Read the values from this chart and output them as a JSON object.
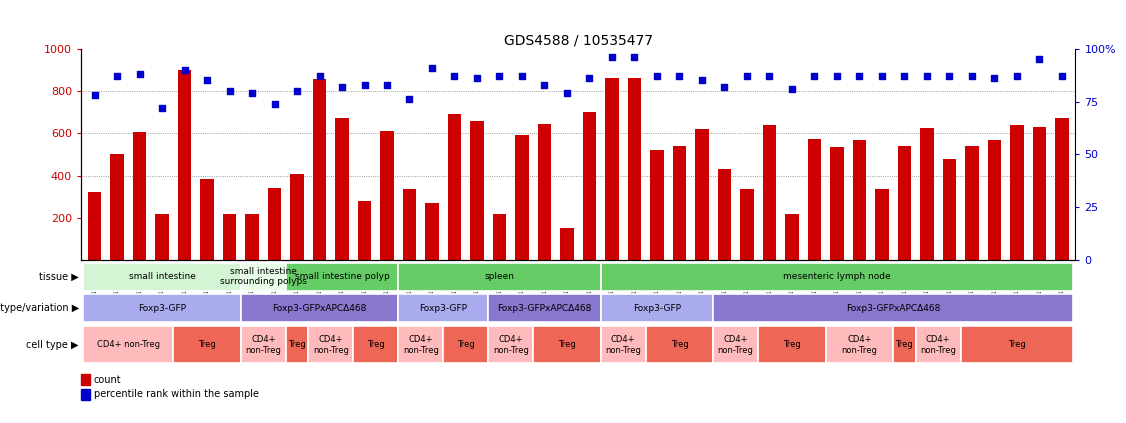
{
  "title": "GDS4588 / 10535477",
  "samples": [
    "GSM1011468",
    "GSM1011469",
    "GSM1011477",
    "GSM1011478",
    "GSM1011482",
    "GSM1011497",
    "GSM1011498",
    "GSM1011466",
    "GSM1011467",
    "GSM1011499",
    "GSM1011489",
    "GSM1011504",
    "GSM1011476",
    "GSM1011490",
    "GSM1011505",
    "GSM1011475",
    "GSM1011487",
    "GSM1011506",
    "GSM1011474",
    "GSM1011488",
    "GSM1011507",
    "GSM1011479",
    "GSM1011494",
    "GSM1011495",
    "GSM1011480",
    "GSM1011496",
    "GSM1011473",
    "GSM1011484",
    "GSM1011502",
    "GSM1011472",
    "GSM1011483",
    "GSM1011503",
    "GSM1011465",
    "GSM1011491",
    "GSM1011492",
    "GSM1011464",
    "GSM1011481",
    "GSM1011493",
    "GSM1011471",
    "GSM1011486",
    "GSM1011500",
    "GSM1011470",
    "GSM1011485",
    "GSM1011501"
  ],
  "bar_values": [
    320,
    500,
    605,
    220,
    900,
    385,
    220,
    220,
    340,
    405,
    855,
    670,
    280,
    610,
    335,
    270,
    690,
    660,
    220,
    590,
    645,
    150,
    700,
    860,
    860,
    520,
    540,
    620,
    430,
    335,
    640,
    220,
    575,
    535,
    570,
    335,
    540,
    625,
    480,
    540,
    570,
    640,
    630,
    670
  ],
  "dot_percentiles": [
    78,
    87,
    88,
    72,
    90,
    85,
    80,
    79,
    74,
    80,
    87,
    82,
    83,
    83,
    76,
    91,
    87,
    86,
    87,
    87,
    83,
    79,
    86,
    96,
    96,
    87,
    87,
    85,
    82,
    87,
    87,
    81,
    87,
    87,
    87,
    87,
    87,
    87,
    87,
    87,
    86,
    87,
    95,
    87
  ],
  "bar_color": "#cc0000",
  "dot_color": "#0000cc",
  "yticks_left": [
    200,
    400,
    600,
    800,
    1000
  ],
  "yticks_right": [
    0,
    25,
    50,
    75,
    100
  ],
  "yticks_right_labels": [
    "0",
    "25",
    "50",
    "75",
    "100%"
  ],
  "grid_values": [
    400,
    600,
    800
  ],
  "tissue_groups": [
    {
      "label": "small intestine",
      "start": 0,
      "end": 7,
      "color": "#d4f5d4"
    },
    {
      "label": "small intestine\nsurrounding polyps",
      "start": 7,
      "end": 9,
      "color": "#e8fce8"
    },
    {
      "label": "small intestine polyp",
      "start": 9,
      "end": 14,
      "color": "#66cc66"
    },
    {
      "label": "spleen",
      "start": 14,
      "end": 23,
      "color": "#66cc66"
    },
    {
      "label": "mesenteric lymph node",
      "start": 23,
      "end": 44,
      "color": "#66cc66"
    }
  ],
  "genotype_groups": [
    {
      "label": "Foxp3-GFP",
      "start": 0,
      "end": 7,
      "color": "#aaaaee"
    },
    {
      "label": "Foxp3-GFPxAPCΔ468",
      "start": 7,
      "end": 14,
      "color": "#8877cc"
    },
    {
      "label": "Foxp3-GFP",
      "start": 14,
      "end": 18,
      "color": "#aaaaee"
    },
    {
      "label": "Foxp3-GFPxAPCΔ468",
      "start": 18,
      "end": 23,
      "color": "#8877cc"
    },
    {
      "label": "Foxp3-GFP",
      "start": 23,
      "end": 28,
      "color": "#aaaaee"
    },
    {
      "label": "Foxp3-GFPxAPCΔ468",
      "start": 28,
      "end": 44,
      "color": "#8877cc"
    }
  ],
  "celltype_groups": [
    {
      "label": "CD4+ non-Treg",
      "start": 0,
      "end": 4,
      "color": "#ffbbbb"
    },
    {
      "label": "Treg",
      "start": 4,
      "end": 7,
      "color": "#ee6655"
    },
    {
      "label": "CD4+\nnon-Treg",
      "start": 7,
      "end": 9,
      "color": "#ffbbbb"
    },
    {
      "label": "Treg",
      "start": 9,
      "end": 10,
      "color": "#ee6655"
    },
    {
      "label": "CD4+\nnon-Treg",
      "start": 10,
      "end": 12,
      "color": "#ffbbbb"
    },
    {
      "label": "Treg",
      "start": 12,
      "end": 14,
      "color": "#ee6655"
    },
    {
      "label": "CD4+\nnon-Treg",
      "start": 14,
      "end": 16,
      "color": "#ffbbbb"
    },
    {
      "label": "Treg",
      "start": 16,
      "end": 18,
      "color": "#ee6655"
    },
    {
      "label": "CD4+\nnon-Treg",
      "start": 18,
      "end": 20,
      "color": "#ffbbbb"
    },
    {
      "label": "Treg",
      "start": 20,
      "end": 23,
      "color": "#ee6655"
    },
    {
      "label": "CD4+\nnon-Treg",
      "start": 23,
      "end": 25,
      "color": "#ffbbbb"
    },
    {
      "label": "Treg",
      "start": 25,
      "end": 28,
      "color": "#ee6655"
    },
    {
      "label": "CD4+\nnon-Treg",
      "start": 28,
      "end": 30,
      "color": "#ffbbbb"
    },
    {
      "label": "Treg",
      "start": 30,
      "end": 33,
      "color": "#ee6655"
    },
    {
      "label": "CD4+\nnon-Treg",
      "start": 33,
      "end": 36,
      "color": "#ffbbbb"
    },
    {
      "label": "Treg",
      "start": 36,
      "end": 37,
      "color": "#ee6655"
    },
    {
      "label": "CD4+\nnon-Treg",
      "start": 37,
      "end": 39,
      "color": "#ffbbbb"
    },
    {
      "label": "Treg",
      "start": 39,
      "end": 44,
      "color": "#ee6655"
    }
  ],
  "row_labels": [
    "tissue",
    "genotype/variation",
    "cell type"
  ],
  "legend_bar_label": "count",
  "legend_dot_label": "percentile rank within the sample"
}
